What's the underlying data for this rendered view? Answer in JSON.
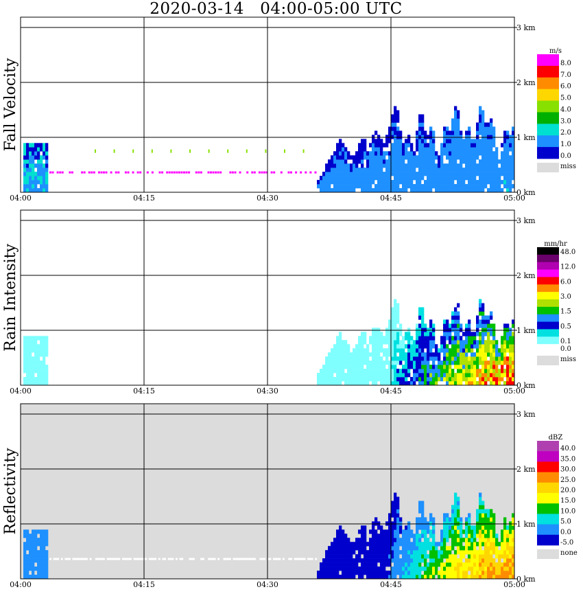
{
  "chart_data": {
    "type": "heatmap",
    "title": "2020-03-14   04:00-05:00 UTC",
    "x_ticks": [
      "04:00",
      "04:15",
      "04:30",
      "04:45",
      "05:00"
    ],
    "y_ticks": [
      "0 km",
      "1 km",
      "2 km",
      "3 km"
    ],
    "ylim_km": [
      0,
      3.2
    ],
    "xlim_minutes": [
      0,
      60
    ],
    "grid": true,
    "panels": [
      {
        "id": "fall-velocity",
        "ylabel": "Fall Velocity",
        "unit": "m/s",
        "background": "#ffffff",
        "levels": [
          {
            "label": "8.0",
            "color": "#ff00ff"
          },
          {
            "label": "7.0",
            "color": "#ff0000"
          },
          {
            "label": "6.0",
            "color": "#ff8c00"
          },
          {
            "label": "5.0",
            "color": "#ffd700"
          },
          {
            "label": "4.0",
            "color": "#88e000"
          },
          {
            "label": "3.0",
            "color": "#00b000"
          },
          {
            "label": "2.0",
            "color": "#00e0d0"
          },
          {
            "label": "1.0",
            "color": "#1e90ff"
          },
          {
            "label": "0.0",
            "color": "#0000cc"
          },
          {
            "label": "miss",
            "color": "#dcdcdc"
          }
        ]
      },
      {
        "id": "rain-intensity",
        "ylabel": "Rain Intensity",
        "unit": "mm/hr",
        "background": "#ffffff",
        "levels": [
          {
            "label": "48.0",
            "color": "#000000"
          },
          {
            "label": "",
            "color": "#6a006a"
          },
          {
            "label": "12.0",
            "color": "#b000b0"
          },
          {
            "label": "",
            "color": "#ff00ff"
          },
          {
            "label": "6.0",
            "color": "#ff0000"
          },
          {
            "label": "",
            "color": "#ff8c00"
          },
          {
            "label": "3.0",
            "color": "#ffff00"
          },
          {
            "label": "",
            "color": "#b0e000"
          },
          {
            "label": "1.5",
            "color": "#00c000"
          },
          {
            "label": "",
            "color": "#1e90ff"
          },
          {
            "label": "0.5",
            "color": "#0000cc"
          },
          {
            "label": "",
            "color": "#00e0e0"
          },
          {
            "label": "0.1",
            "color": "#80ffff"
          },
          {
            "label": "0.0",
            "color": "#ffffff"
          },
          {
            "label": "miss",
            "color": "#dcdcdc"
          }
        ]
      },
      {
        "id": "reflectivity",
        "ylabel": "Reflectivity",
        "unit": "dBZ",
        "background": "#dcdcdc",
        "levels": [
          {
            "label": "40.0",
            "color": "#b040b0"
          },
          {
            "label": "35.0",
            "color": "#c000c0"
          },
          {
            "label": "30.0",
            "color": "#ff0000"
          },
          {
            "label": "25.0",
            "color": "#ff8c00"
          },
          {
            "label": "20.0",
            "color": "#ffd700"
          },
          {
            "label": "15.0",
            "color": "#ffff00"
          },
          {
            "label": "10.0",
            "color": "#00c000"
          },
          {
            "label": "5.0",
            "color": "#00e0e0"
          },
          {
            "label": "0.0",
            "color": "#1e90ff"
          },
          {
            "label": "-5.0",
            "color": "#0000cc"
          },
          {
            "label": "none",
            "color": "#dcdcdc"
          }
        ]
      }
    ]
  }
}
